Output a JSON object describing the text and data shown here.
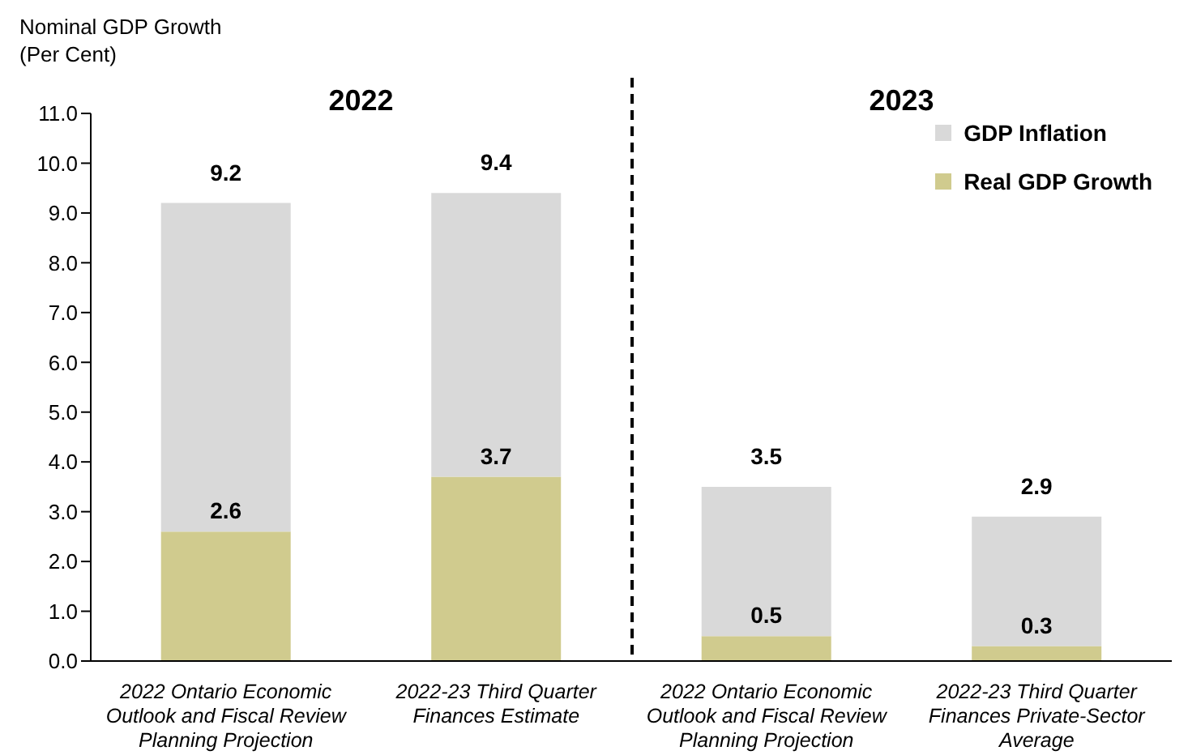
{
  "chart_data": {
    "type": "bar",
    "stacked": true,
    "ylabel": "Nominal GDP Growth\n(Per Cent)",
    "categories": [
      "2022 Ontario Economic Outlook and Fiscal Review Planning Projection",
      "2022-23 Third Quarter Finances Estimate",
      "2022 Ontario Economic Outlook and Fiscal Review Planning Projection",
      "2022-23 Third Quarter Finances Private-Sector Average"
    ],
    "series": [
      {
        "name": "Real GDP Growth",
        "color": "#d0cb8e",
        "values": [
          2.6,
          3.7,
          0.5,
          0.3
        ],
        "value_labels": [
          "2.6",
          "3.7",
          "0.5",
          "0.3"
        ]
      },
      {
        "name": "GDP Inflation",
        "color": "#d9d9d9",
        "values": [
          6.6,
          5.7,
          3.0,
          2.6
        ]
      }
    ],
    "totals": [
      "9.2",
      "9.4",
      "3.5",
      "2.9"
    ],
    "annotations": [
      "2022",
      "2023"
    ],
    "ylim": [
      0,
      11
    ],
    "yticks": [
      {
        "value": 0,
        "label": "0.0"
      },
      {
        "value": 1,
        "label": "1.0"
      },
      {
        "value": 2,
        "label": "2.0"
      },
      {
        "value": 3,
        "label": "3.0"
      },
      {
        "value": 4,
        "label": "4.0"
      },
      {
        "value": 5,
        "label": "5.0"
      },
      {
        "value": 6,
        "label": "6.0"
      },
      {
        "value": 7,
        "label": "7.0"
      },
      {
        "value": 8,
        "label": "8.0"
      },
      {
        "value": 9,
        "label": "9.0"
      },
      {
        "value": 10,
        "label": "10.0"
      },
      {
        "value": 11,
        "label": "11.0"
      }
    ],
    "grid": false,
    "legend": "top right"
  }
}
